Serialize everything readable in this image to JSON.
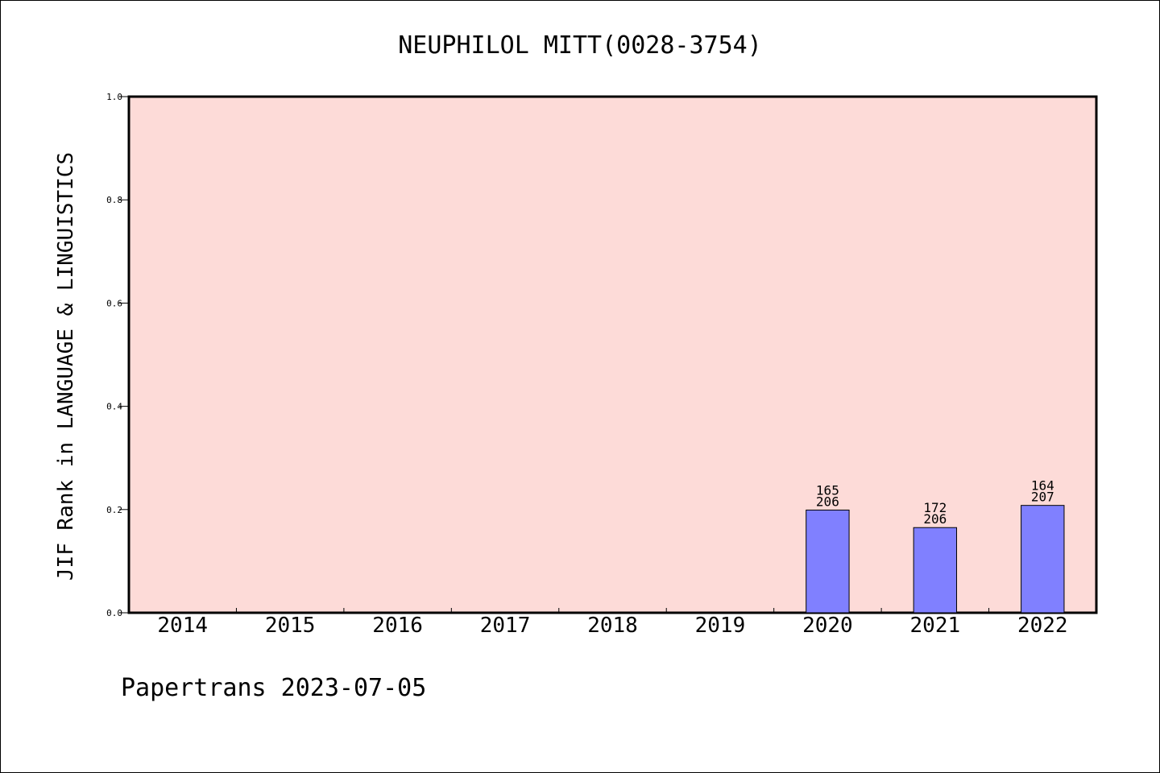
{
  "chart_data": {
    "type": "bar",
    "title": "NEUPHILOL MITT(0028-3754)",
    "ylabel": "JIF Rank in LANGUAGE & LINGUISTICS",
    "xlabel": "",
    "footer": "Papertrans 2023-07-05",
    "categories": [
      "2014",
      "2015",
      "2016",
      "2017",
      "2018",
      "2019",
      "2020",
      "2021",
      "2022"
    ],
    "values": [
      null,
      null,
      null,
      null,
      null,
      null,
      0.199,
      0.165,
      0.208
    ],
    "rank_labels": [
      null,
      null,
      null,
      null,
      null,
      null,
      "165",
      "172",
      "164"
    ],
    "total_labels": [
      null,
      null,
      null,
      null,
      null,
      null,
      "206",
      "206",
      "207"
    ],
    "ylim": [
      0,
      1.0
    ],
    "yticks": [
      "0.0",
      "0.2",
      "0.4",
      "0.6",
      "0.8",
      "1.0"
    ],
    "grid": false,
    "colors": {
      "plot_background": "#fddbd8",
      "bar_fill": "#8080ff",
      "bar_stroke": "#000000",
      "axis": "#000000"
    }
  }
}
